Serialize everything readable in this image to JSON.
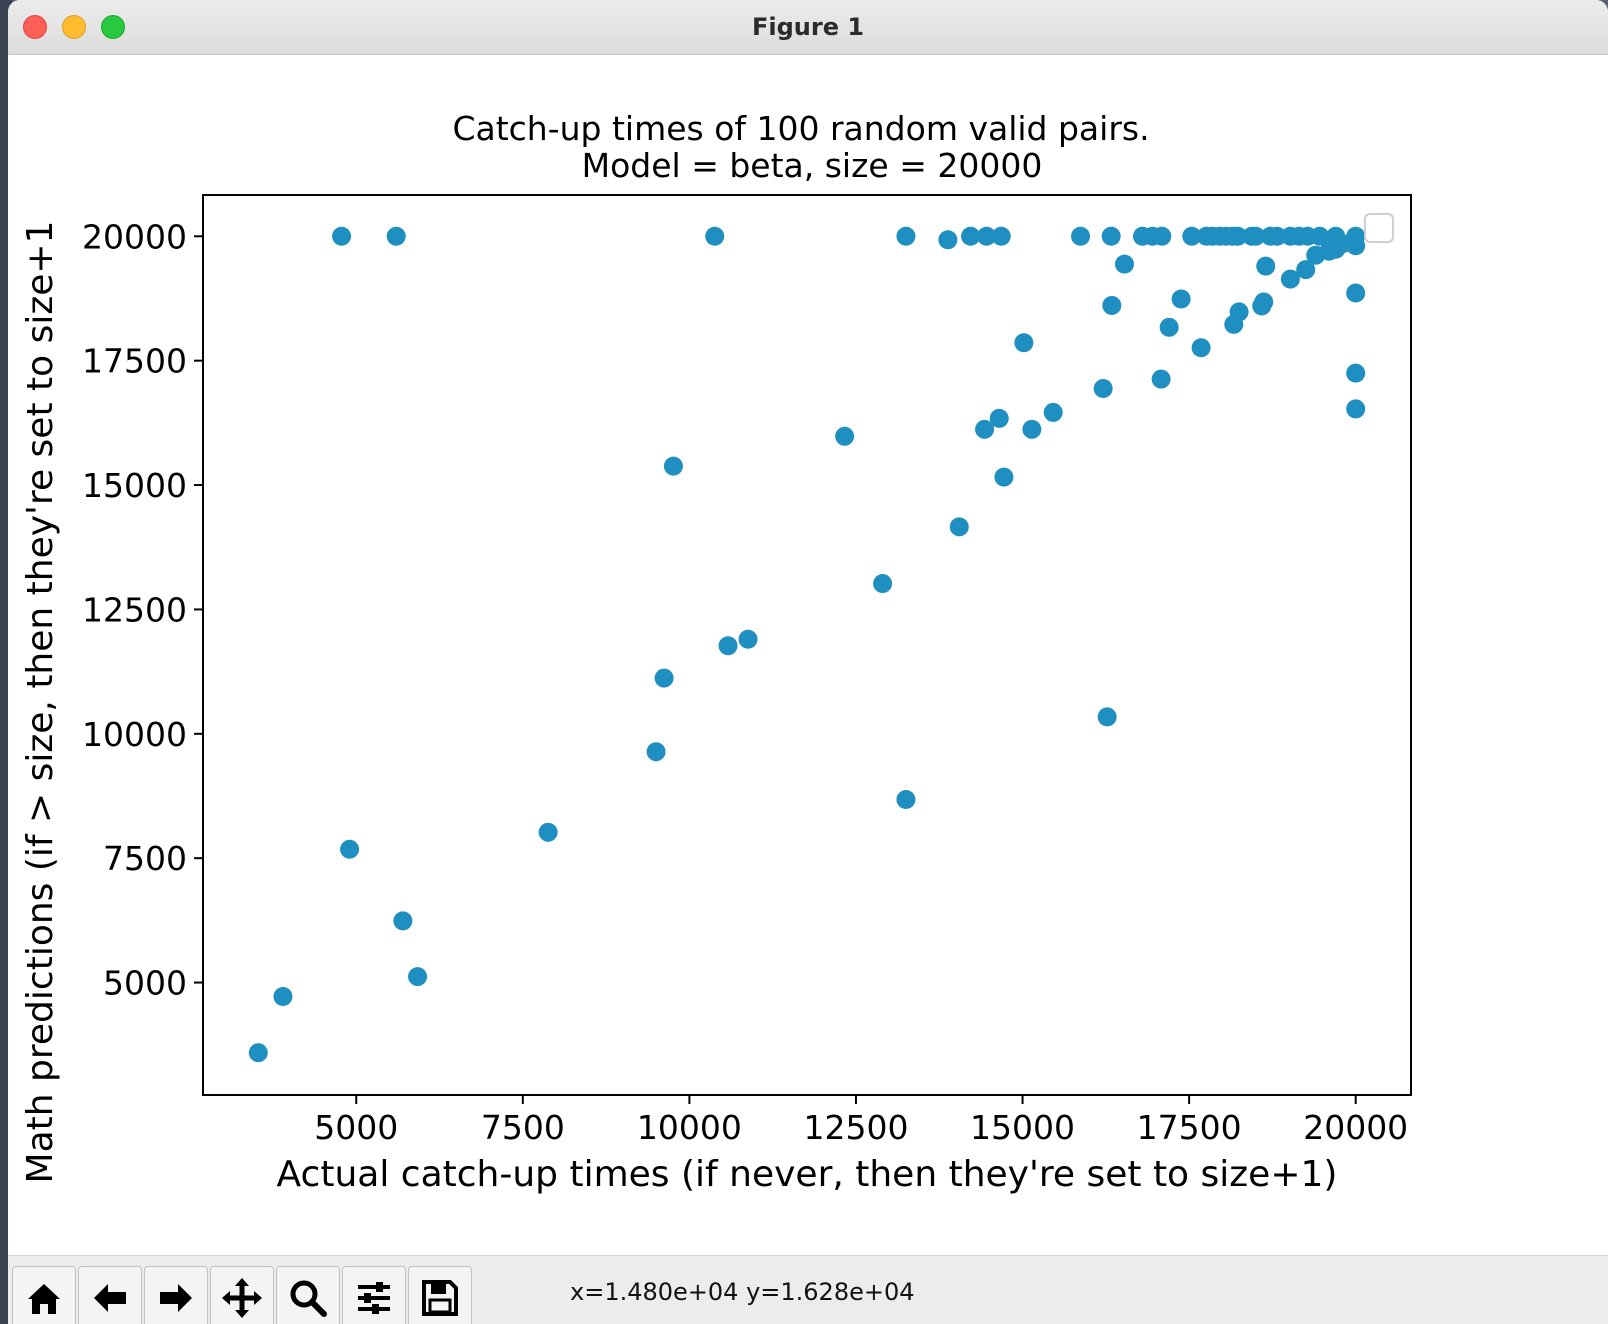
{
  "window": {
    "title": "Figure 1",
    "traffic_lights": {
      "close": "#fe5f57",
      "minimize": "#febc2e",
      "zoom": "#28c840"
    }
  },
  "toolbar": {
    "buttons": [
      {
        "name": "home",
        "icon": "home-icon"
      },
      {
        "name": "back",
        "icon": "arrow-left-icon"
      },
      {
        "name": "forward",
        "icon": "arrow-right-icon"
      },
      {
        "name": "pan",
        "icon": "move-icon"
      },
      {
        "name": "zoom",
        "icon": "zoom-icon"
      },
      {
        "name": "configure-subplots",
        "icon": "sliders-icon"
      },
      {
        "name": "save",
        "icon": "save-icon"
      }
    ],
    "coordinates": "x=1.480e+04 y=1.628e+04"
  },
  "chart_data": {
    "type": "scatter",
    "title": "Catch-up times of 100 random valid pairs.",
    "subtitle": "Model = beta, size = 20000",
    "xlabel": "Actual catch-up times (if never, then they're set to size+1)",
    "ylabel": "Math predictions (if > size, then they're set to size+1",
    "xlim": [
      2700,
      20830
    ],
    "ylim": [
      2740,
      20830
    ],
    "xticks": [
      5000,
      7500,
      10000,
      12500,
      15000,
      17500,
      20000
    ],
    "yticks": [
      5000,
      7500,
      10000,
      12500,
      15000,
      17500,
      20000
    ],
    "grid": false,
    "legend": "upper right, empty",
    "color": "#1f8fc1",
    "x": [
      3530,
      3900,
      4900,
      5700,
      5920,
      7880,
      9500,
      9620,
      9760,
      10580,
      10880,
      12330,
      12900,
      13250,
      14050,
      14650,
      14720,
      15140,
      15460,
      15020,
      14430,
      16210,
      16270,
      16340,
      16530,
      17080,
      17380,
      17200,
      17680,
      18170,
      18250,
      18590,
      18620,
      18650,
      19020,
      19250,
      19400,
      20000,
      20000,
      20000,
      20000,
      19700,
      19600,
      19800,
      4780,
      5600,
      10380,
      13250,
      13880,
      14220,
      14460,
      14680,
      15870,
      16330,
      16800,
      16950,
      17090,
      17540,
      17760,
      17850,
      17960,
      18050,
      18150,
      18230,
      18440,
      18500,
      18720,
      18820,
      19020,
      19150,
      19280,
      19460,
      19700,
      20000
    ],
    "y": [
      3590,
      4720,
      7680,
      6240,
      5120,
      8020,
      9640,
      11120,
      15380,
      11770,
      11900,
      15980,
      13020,
      8680,
      14160,
      16340,
      15160,
      16120,
      16460,
      17860,
      16120,
      16940,
      10340,
      18610,
      19440,
      17130,
      18740,
      18170,
      17760,
      18230,
      18480,
      18600,
      18680,
      19400,
      19140,
      19330,
      19620,
      18860,
      17250,
      16530,
      19810,
      19740,
      19700,
      19850,
      20001,
      20001,
      20001,
      20001,
      19930,
      20001,
      20001,
      20001,
      20001,
      20001,
      20001,
      20001,
      20001,
      20001,
      20001,
      20001,
      20001,
      20001,
      20001,
      20001,
      20001,
      20001,
      20001,
      20001,
      20001,
      20001,
      20001,
      20001,
      20001,
      20001
    ]
  }
}
